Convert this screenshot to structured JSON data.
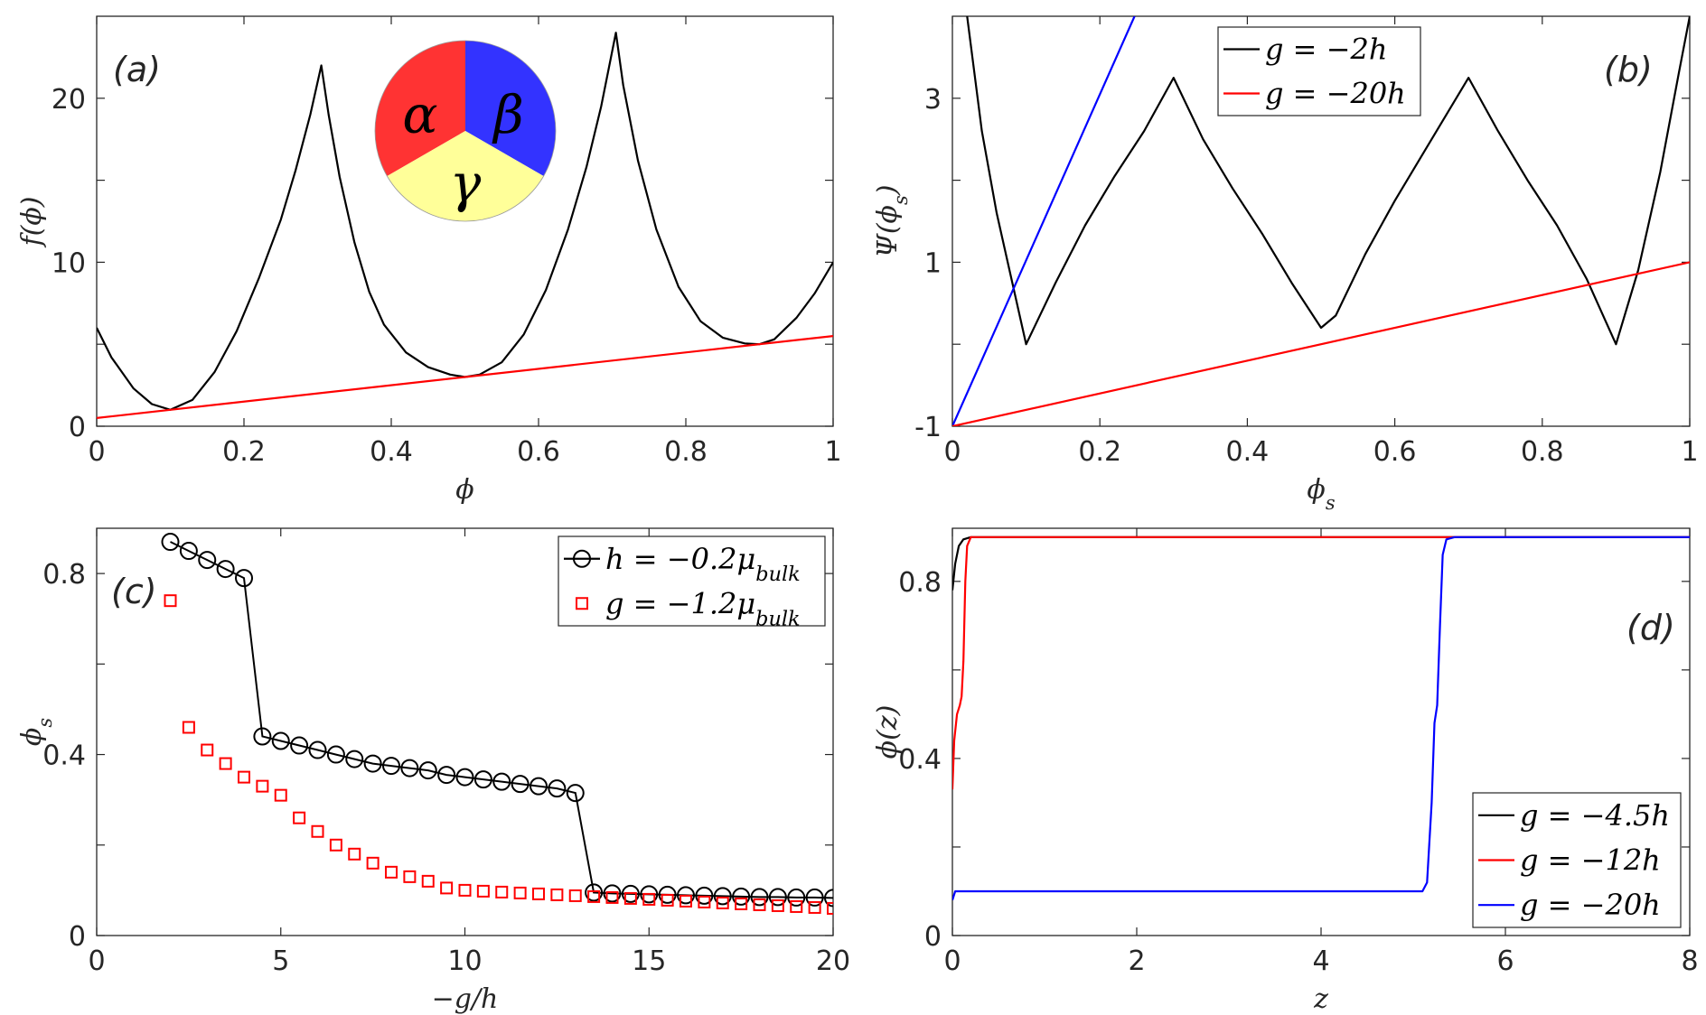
{
  "chart_data": [
    {
      "id": "a",
      "type": "line",
      "panel_label": "(a)",
      "xlabel": "ϕ",
      "ylabel": "f(ϕ)",
      "xlim": [
        0,
        1
      ],
      "ylim": [
        0,
        25
      ],
      "xticks": [
        0,
        0.2,
        0.4,
        0.6,
        0.8,
        1
      ],
      "xtick_labels": [
        "0",
        "0.2",
        "0.4",
        "0.6",
        "0.8",
        "1"
      ],
      "yticks": [
        0,
        10,
        20
      ],
      "ytick_labels": [
        "0",
        "10",
        "20"
      ],
      "minor_yticks": [
        5,
        15
      ],
      "series": [
        {
          "color": "#000000",
          "points": [
            [
              0,
              6
            ],
            [
              0.02,
              4.2
            ],
            [
              0.05,
              2.3
            ],
            [
              0.075,
              1.35
            ],
            [
              0.1,
              1
            ],
            [
              0.13,
              1.6
            ],
            [
              0.16,
              3.3
            ],
            [
              0.19,
              5.8
            ],
            [
              0.22,
              9
            ],
            [
              0.25,
              12.6
            ],
            [
              0.27,
              15.6
            ],
            [
              0.29,
              19
            ],
            [
              0.305,
              22
            ],
            [
              0.315,
              19
            ],
            [
              0.33,
              15.2
            ],
            [
              0.35,
              11.2
            ],
            [
              0.37,
              8.2
            ],
            [
              0.39,
              6.2
            ],
            [
              0.42,
              4.5
            ],
            [
              0.45,
              3.6
            ],
            [
              0.48,
              3.15
            ],
            [
              0.5,
              3
            ],
            [
              0.52,
              3.15
            ],
            [
              0.55,
              3.9
            ],
            [
              0.58,
              5.6
            ],
            [
              0.61,
              8.3
            ],
            [
              0.64,
              12
            ],
            [
              0.665,
              15.8
            ],
            [
              0.685,
              19.5
            ],
            [
              0.705,
              24
            ],
            [
              0.715,
              20.8
            ],
            [
              0.735,
              16.2
            ],
            [
              0.76,
              12
            ],
            [
              0.79,
              8.5
            ],
            [
              0.82,
              6.4
            ],
            [
              0.85,
              5.4
            ],
            [
              0.88,
              5.05
            ],
            [
              0.9,
              5
            ],
            [
              0.92,
              5.3
            ],
            [
              0.95,
              6.6
            ],
            [
              0.975,
              8.1
            ],
            [
              1,
              10
            ]
          ]
        },
        {
          "color": "#ff0000",
          "points": [
            [
              0,
              0.5
            ],
            [
              1,
              5.5
            ]
          ]
        }
      ],
      "inset": {
        "type": "pie",
        "slices": [
          {
            "label": "α",
            "color": "#ff3333"
          },
          {
            "label": "β",
            "color": "#3333ff"
          },
          {
            "label": "γ",
            "color": "#ffff99"
          }
        ]
      }
    },
    {
      "id": "b",
      "type": "line",
      "panel_label": "(b)",
      "xlabel": "ϕs",
      "ylabel": "Ψ(ϕs)",
      "xlim": [
        0,
        1
      ],
      "ylim": [
        -1,
        4
      ],
      "xticks": [
        0,
        0.2,
        0.4,
        0.6,
        0.8,
        1
      ],
      "xtick_labels": [
        "0",
        "0.2",
        "0.4",
        "0.6",
        "0.8",
        "1"
      ],
      "yticks": [
        -1,
        1,
        3
      ],
      "ytick_labels": [
        "-1",
        "1",
        "3"
      ],
      "minor_yticks": [
        0,
        2
      ],
      "legend": {
        "position": "top-center",
        "entries": [
          {
            "label": "g = −2h",
            "color": "#000000"
          },
          {
            "label": "g = −20h",
            "color": "#ff0000"
          }
        ]
      },
      "series": [
        {
          "color": "#000000",
          "points": [
            [
              0.02,
              4
            ],
            [
              0.04,
              2.6
            ],
            [
              0.06,
              1.6
            ],
            [
              0.08,
              0.8
            ],
            [
              0.1,
              0
            ],
            [
              0.14,
              0.75
            ],
            [
              0.18,
              1.45
            ],
            [
              0.22,
              2.05
            ],
            [
              0.26,
              2.6
            ],
            [
              0.3,
              3.25
            ],
            [
              0.34,
              2.5
            ],
            [
              0.38,
              1.9
            ],
            [
              0.42,
              1.35
            ],
            [
              0.46,
              0.75
            ],
            [
              0.5,
              0.2
            ],
            [
              0.52,
              0.35
            ],
            [
              0.56,
              1.1
            ],
            [
              0.6,
              1.75
            ],
            [
              0.64,
              2.35
            ],
            [
              0.7,
              3.25
            ],
            [
              0.74,
              2.6
            ],
            [
              0.78,
              2
            ],
            [
              0.82,
              1.45
            ],
            [
              0.86,
              0.8
            ],
            [
              0.9,
              0
            ],
            [
              0.93,
              0.9
            ],
            [
              0.96,
              2.1
            ],
            [
              0.985,
              3.3
            ],
            [
              1,
              4
            ]
          ]
        },
        {
          "color": "#0000ff",
          "points": [
            [
              0,
              -1
            ],
            [
              0.247,
              4
            ]
          ]
        },
        {
          "color": "#ff0000",
          "points": [
            [
              0,
              -1
            ],
            [
              1,
              1
            ]
          ]
        }
      ]
    },
    {
      "id": "c",
      "type": "scatter",
      "panel_label": "(c)",
      "xlabel": "−g/h",
      "ylabel": "ϕs",
      "xlim": [
        0,
        20
      ],
      "ylim": [
        0,
        0.9
      ],
      "xticks": [
        0,
        5,
        10,
        15,
        20
      ],
      "xtick_labels": [
        "0",
        "5",
        "10",
        "15",
        "20"
      ],
      "yticks": [
        0,
        0.4,
        0.8
      ],
      "ytick_labels": [
        "0",
        "0.4",
        "0.8"
      ],
      "minor_yticks": [
        0.2,
        0.6
      ],
      "legend": {
        "position": "top-right",
        "entries": [
          {
            "label": "h = −0.2μbulk",
            "color": "#000000",
            "marker": "circle"
          },
          {
            "label": "g = −1.2μbulk",
            "color": "#ff0000",
            "marker": "square"
          }
        ]
      },
      "series": [
        {
          "color": "#000000",
          "marker": "circle",
          "line": true,
          "x": [
            2,
            2.5,
            3,
            3.5,
            4,
            4.5,
            5,
            5.5,
            6,
            6.5,
            7,
            7.5,
            8,
            8.5,
            9,
            9.5,
            10,
            10.5,
            11,
            11.5,
            12,
            12.5,
            13,
            13.5,
            14,
            14.5,
            15,
            15.5,
            16,
            16.5,
            17,
            17.5,
            18,
            18.5,
            19,
            19.5,
            20
          ],
          "values": [
            0.87,
            0.85,
            0.83,
            0.81,
            0.79,
            0.44,
            0.43,
            0.42,
            0.41,
            0.4,
            0.39,
            0.38,
            0.375,
            0.37,
            0.365,
            0.355,
            0.35,
            0.345,
            0.34,
            0.335,
            0.33,
            0.325,
            0.315,
            0.095,
            0.093,
            0.092,
            0.091,
            0.09,
            0.089,
            0.088,
            0.087,
            0.086,
            0.085,
            0.085,
            0.084,
            0.084,
            0.083
          ]
        },
        {
          "color": "#ff0000",
          "marker": "square",
          "line": false,
          "x": [
            2,
            2.5,
            3,
            3.5,
            4,
            4.5,
            5,
            5.5,
            6,
            6.5,
            7,
            7.5,
            8,
            8.5,
            9,
            9.5,
            10,
            10.5,
            11,
            11.5,
            12,
            12.5,
            13,
            13.5,
            14,
            14.5,
            15,
            15.5,
            16,
            16.5,
            17,
            17.5,
            18,
            18.5,
            19,
            19.5,
            20
          ],
          "values": [
            0.74,
            0.46,
            0.41,
            0.38,
            0.35,
            0.33,
            0.31,
            0.26,
            0.23,
            0.2,
            0.18,
            0.16,
            0.14,
            0.13,
            0.12,
            0.105,
            0.1,
            0.098,
            0.096,
            0.094,
            0.092,
            0.09,
            0.088,
            0.086,
            0.084,
            0.082,
            0.08,
            0.078,
            0.076,
            0.074,
            0.072,
            0.07,
            0.068,
            0.066,
            0.064,
            0.062,
            0.06
          ]
        }
      ]
    },
    {
      "id": "d",
      "type": "line",
      "panel_label": "(d)",
      "xlabel": "z",
      "ylabel": "ϕ(z)",
      "xlim": [
        0,
        8
      ],
      "ylim": [
        0,
        0.92
      ],
      "xticks": [
        0,
        2,
        4,
        6,
        8
      ],
      "xtick_labels": [
        "0",
        "2",
        "4",
        "6",
        "8"
      ],
      "yticks": [
        0,
        0.4,
        0.8
      ],
      "ytick_labels": [
        "0",
        "0.4",
        "0.8"
      ],
      "minor_yticks": [
        0.2,
        0.6
      ],
      "legend": {
        "position": "bottom-right",
        "entries": [
          {
            "label": "g = −4.5h",
            "color": "#000000"
          },
          {
            "label": "g = −12h",
            "color": "#ff0000"
          },
          {
            "label": "g = −20h",
            "color": "#0000ff"
          }
        ]
      },
      "series": [
        {
          "color": "#000000",
          "points": [
            [
              0,
              0.78
            ],
            [
              0.03,
              0.84
            ],
            [
              0.07,
              0.88
            ],
            [
              0.12,
              0.895
            ],
            [
              0.2,
              0.9
            ],
            [
              8,
              0.9
            ]
          ]
        },
        {
          "color": "#ff0000",
          "points": [
            [
              0,
              0.33
            ],
            [
              0.02,
              0.44
            ],
            [
              0.05,
              0.5
            ],
            [
              0.08,
              0.52
            ],
            [
              0.1,
              0.54
            ],
            [
              0.12,
              0.62
            ],
            [
              0.14,
              0.8
            ],
            [
              0.16,
              0.88
            ],
            [
              0.2,
              0.9
            ],
            [
              8,
              0.9
            ]
          ]
        },
        {
          "color": "#0000ff",
          "points": [
            [
              0,
              0.08
            ],
            [
              0.03,
              0.1
            ],
            [
              0.1,
              0.1
            ],
            [
              5.1,
              0.1
            ],
            [
              5.15,
              0.12
            ],
            [
              5.2,
              0.3
            ],
            [
              5.23,
              0.48
            ],
            [
              5.26,
              0.52
            ],
            [
              5.29,
              0.7
            ],
            [
              5.32,
              0.86
            ],
            [
              5.36,
              0.895
            ],
            [
              5.45,
              0.9
            ],
            [
              8,
              0.9
            ]
          ]
        }
      ]
    }
  ]
}
